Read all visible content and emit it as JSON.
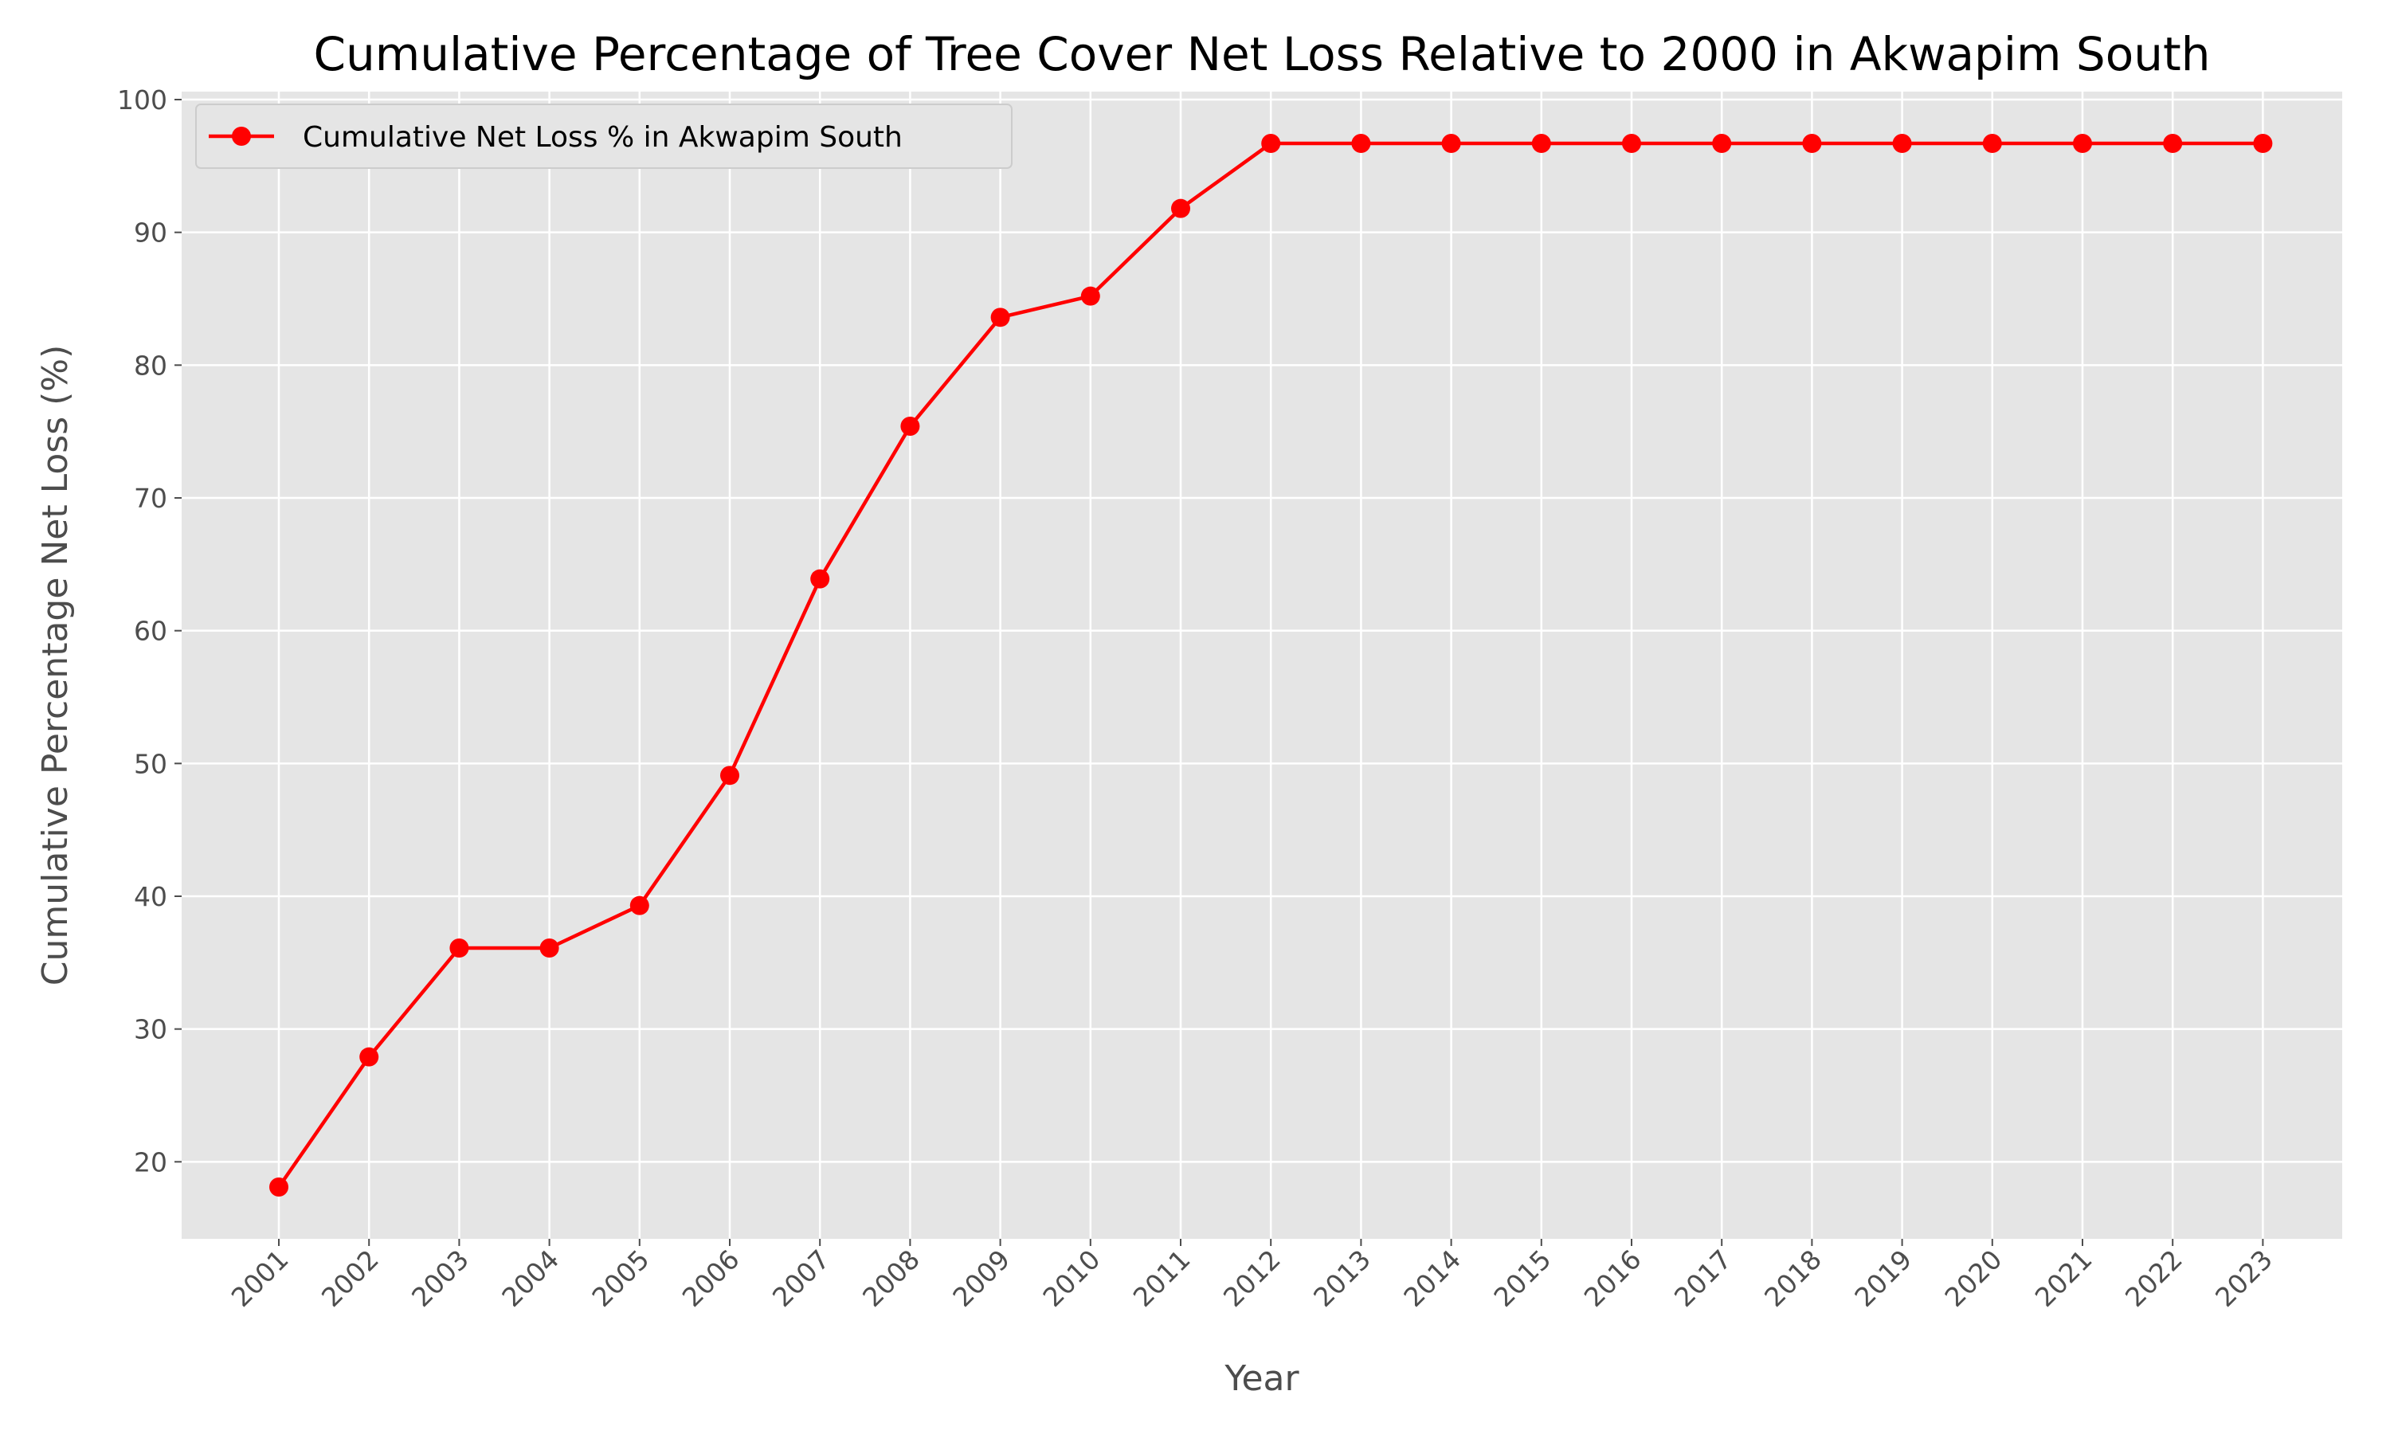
{
  "chart_data": {
    "type": "line",
    "title": "Cumulative Percentage of Tree Cover Net Loss Relative to 2000 in Akwapim South",
    "xlabel": "Year",
    "ylabel": "Cumulative Percentage Net Loss (%)",
    "categories": [
      "2001",
      "2002",
      "2003",
      "2004",
      "2005",
      "2006",
      "2007",
      "2008",
      "2009",
      "2010",
      "2011",
      "2012",
      "2013",
      "2014",
      "2015",
      "2016",
      "2017",
      "2018",
      "2019",
      "2020",
      "2021",
      "2022",
      "2023"
    ],
    "series": [
      {
        "name": "Cumulative Net Loss % in Akwapim South",
        "color": "#ff0000",
        "marker": "circle",
        "values": [
          18.1,
          27.9,
          36.1,
          36.1,
          39.3,
          49.1,
          63.9,
          75.4,
          83.6,
          85.2,
          91.8,
          96.7,
          96.7,
          96.7,
          96.7,
          96.7,
          96.7,
          96.7,
          96.7,
          96.7,
          96.7,
          96.7,
          96.7
        ]
      }
    ],
    "ylim": [
      14.2,
      100.6
    ],
    "yticks": [
      20,
      30,
      40,
      50,
      60,
      70,
      80,
      90,
      100
    ],
    "grid": true,
    "legend_position": "top-left",
    "background_color": "#e5e5e5",
    "grid_color": "#ffffff"
  }
}
